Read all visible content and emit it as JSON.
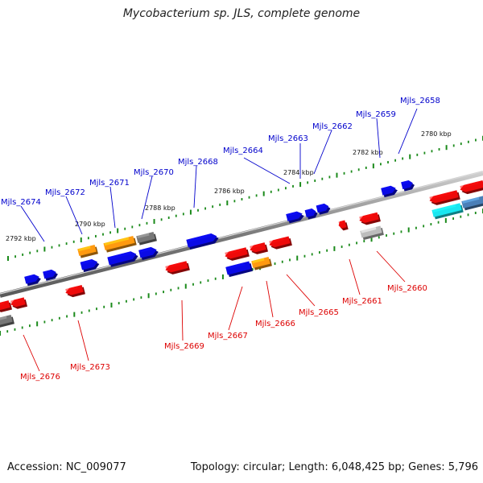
{
  "title": "Mycobacterium sp. JLS, complete genome",
  "footer": {
    "accession": "Accession: NC_009077",
    "summary": "Topology: circular; Length: 6,048,425 bp; Genes: 5,796"
  },
  "colors": {
    "forward_label": "#0000cc",
    "reverse_label": "#dd0000",
    "backbone": "#8a8a8a",
    "tick": "#1a8a1a"
  },
  "scale_labels": [
    "2780 kbp",
    "2782 kbp",
    "2784 kbp",
    "2786 kbp",
    "2788 kbp",
    "2790 kbp",
    "2792 kbp"
  ],
  "forward_genes": [
    "Mjls_2658",
    "Mjls_2659",
    "Mjls_2662",
    "Mjls_2663",
    "Mjls_2664",
    "Mjls_2668",
    "Mjls_2670",
    "Mjls_2671",
    "Mjls_2672",
    "Mjls_2674"
  ],
  "reverse_genes": [
    "Mjls_2660",
    "Mjls_2661",
    "Mjls_2665",
    "Mjls_2666",
    "Mjls_2667",
    "Mjls_2669",
    "Mjls_2673",
    "Mjls_2676"
  ]
}
